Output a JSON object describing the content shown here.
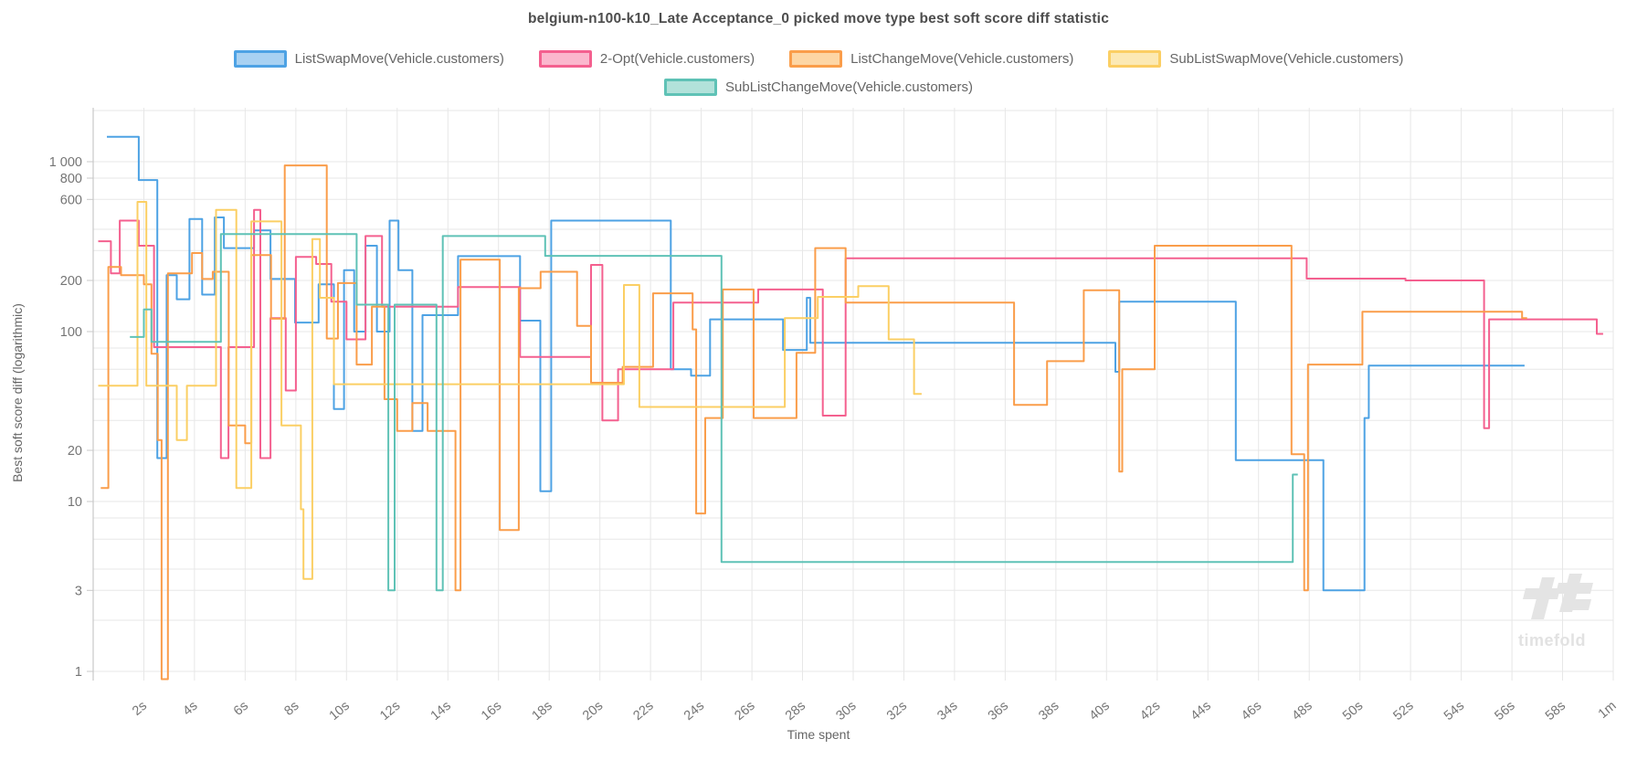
{
  "page": {
    "title": "belgium-n100-k10_Late Acceptance_0 picked move type best soft score diff statistic"
  },
  "legend": {
    "items": [
      {
        "label": "ListSwapMove(Vehicle.customers)",
        "line": "#4DA2E4",
        "fill": "#A8D1F2"
      },
      {
        "label": "2-Opt(Vehicle.customers)",
        "line": "#F4608F",
        "fill": "#FBB7CD"
      },
      {
        "label": "ListChangeMove(Vehicle.customers)",
        "line": "#FA9D4A",
        "fill": "#FDD6A4"
      },
      {
        "label": "SubListSwapMove(Vehicle.customers)",
        "line": "#FBCF64",
        "fill": "#FCE9B4"
      },
      {
        "label": "SubListChangeMove(Vehicle.customers)",
        "line": "#5FC2B6",
        "fill": "#B2E2DA"
      }
    ]
  },
  "axes": {
    "x": {
      "title": "Time spent",
      "ticks": [
        {
          "t": 2,
          "label": "2s"
        },
        {
          "t": 4,
          "label": "4s"
        },
        {
          "t": 6,
          "label": "6s"
        },
        {
          "t": 8,
          "label": "8s"
        },
        {
          "t": 10,
          "label": "10s"
        },
        {
          "t": 12,
          "label": "12s"
        },
        {
          "t": 14,
          "label": "14s"
        },
        {
          "t": 16,
          "label": "16s"
        },
        {
          "t": 18,
          "label": "18s"
        },
        {
          "t": 20,
          "label": "20s"
        },
        {
          "t": 22,
          "label": "22s"
        },
        {
          "t": 24,
          "label": "24s"
        },
        {
          "t": 26,
          "label": "26s"
        },
        {
          "t": 28,
          "label": "28s"
        },
        {
          "t": 30,
          "label": "30s"
        },
        {
          "t": 32,
          "label": "32s"
        },
        {
          "t": 34,
          "label": "34s"
        },
        {
          "t": 36,
          "label": "36s"
        },
        {
          "t": 38,
          "label": "38s"
        },
        {
          "t": 40,
          "label": "40s"
        },
        {
          "t": 42,
          "label": "42s"
        },
        {
          "t": 44,
          "label": "44s"
        },
        {
          "t": 46,
          "label": "46s"
        },
        {
          "t": 48,
          "label": "48s"
        },
        {
          "t": 50,
          "label": "50s"
        },
        {
          "t": 52,
          "label": "52s"
        },
        {
          "t": 54,
          "label": "54s"
        },
        {
          "t": 56,
          "label": "56s"
        },
        {
          "t": 58,
          "label": "58s"
        },
        {
          "t": 60,
          "label": "1m"
        }
      ],
      "gridline_step_s": 2,
      "max_s": 60
    },
    "y": {
      "title": "Best soft score diff (logarithmic)",
      "ticks": [
        {
          "label": "1 000",
          "value": 1000
        },
        {
          "label": "800",
          "value": 800
        },
        {
          "label": "600",
          "value": 600
        },
        {
          "label": "200",
          "value": 200
        },
        {
          "label": "100",
          "value": 100
        },
        {
          "label": "20",
          "value": 20
        },
        {
          "label": "10",
          "value": 10
        },
        {
          "label": "3",
          "value": 3
        },
        {
          "label": "1",
          "value": 1
        }
      ],
      "gridlines": [
        1,
        2,
        3,
        4,
        6,
        8,
        10,
        20,
        30,
        40,
        60,
        80,
        100,
        200,
        300,
        400,
        600,
        800,
        1000,
        2000
      ],
      "scale": "logarithmic"
    }
  },
  "chart_data": {
    "type": "line",
    "step_mode": "step-after",
    "title": "belgium-n100-k10_Late Acceptance_0 picked move type best soft score diff statistic",
    "xlabel": "Time spent",
    "ylabel": "Best soft score diff (logarithmic)",
    "x_unit": "seconds",
    "xlim": [
      0,
      60
    ],
    "ylog_range": [
      0.88,
      2100
    ],
    "grid": true,
    "legend_position": "top",
    "series": [
      {
        "name": "ListSwapMove(Vehicle.customers)",
        "color": "#4DA2E4",
        "points": [
          [
            0.54,
            1400
          ],
          [
            1.8,
            780
          ],
          [
            2.53,
            18
          ],
          [
            2.9,
            215
          ],
          [
            3.3,
            155
          ],
          [
            3.8,
            460
          ],
          [
            4.3,
            165
          ],
          [
            4.8,
            470
          ],
          [
            5.16,
            310
          ],
          [
            6.35,
            394
          ],
          [
            7.0,
            204
          ],
          [
            7.97,
            113
          ],
          [
            8.9,
            190
          ],
          [
            9.5,
            35
          ],
          [
            9.9,
            230
          ],
          [
            10.3,
            100
          ],
          [
            10.75,
            320
          ],
          [
            11.2,
            100
          ],
          [
            11.7,
            450
          ],
          [
            12.05,
            230
          ],
          [
            12.6,
            26
          ],
          [
            13.0,
            125
          ],
          [
            14.4,
            278
          ],
          [
            16.85,
            116
          ],
          [
            17.65,
            11.5
          ],
          [
            18.08,
            450
          ],
          [
            22.8,
            60
          ],
          [
            23.6,
            55
          ],
          [
            24.35,
            118
          ],
          [
            27.23,
            78
          ],
          [
            28.17,
            158
          ],
          [
            28.3,
            86
          ],
          [
            40.35,
            58
          ],
          [
            40.5,
            150
          ],
          [
            45.1,
            17.5
          ],
          [
            48.56,
            3
          ],
          [
            50.18,
            31
          ],
          [
            50.35,
            63
          ],
          [
            56.5,
            63
          ]
        ]
      },
      {
        "name": "2-Opt(Vehicle.customers)",
        "color": "#F4608F",
        "points": [
          [
            0.2,
            340
          ],
          [
            0.7,
            220
          ],
          [
            1.05,
            450
          ],
          [
            1.8,
            320
          ],
          [
            2.4,
            81
          ],
          [
            5.04,
            18
          ],
          [
            5.34,
            81
          ],
          [
            6.35,
            520
          ],
          [
            6.6,
            18
          ],
          [
            7.0,
            120
          ],
          [
            7.6,
            45
          ],
          [
            8.0,
            275
          ],
          [
            8.8,
            250
          ],
          [
            9.4,
            150
          ],
          [
            10.0,
            90
          ],
          [
            10.75,
            365
          ],
          [
            11.4,
            140
          ],
          [
            14.4,
            183
          ],
          [
            16.85,
            71
          ],
          [
            19.65,
            247
          ],
          [
            20.1,
            30
          ],
          [
            20.72,
            60
          ],
          [
            22.9,
            148
          ],
          [
            26.25,
            177
          ],
          [
            28.8,
            32
          ],
          [
            29.7,
            270
          ],
          [
            47.9,
            205
          ],
          [
            51.8,
            200
          ],
          [
            54.9,
            27
          ],
          [
            55.1,
            118
          ],
          [
            59.35,
            97
          ],
          [
            59.6,
            97
          ]
        ]
      },
      {
        "name": "ListChangeMove(Vehicle.customers)",
        "color": "#FA9D4A",
        "points": [
          [
            0.3,
            12
          ],
          [
            0.6,
            240
          ],
          [
            1.1,
            215
          ],
          [
            2.0,
            190
          ],
          [
            2.3,
            74
          ],
          [
            2.55,
            23
          ],
          [
            2.7,
            0.9
          ],
          [
            2.95,
            220
          ],
          [
            3.9,
            290
          ],
          [
            4.3,
            204
          ],
          [
            4.72,
            225
          ],
          [
            5.35,
            28
          ],
          [
            6.0,
            22
          ],
          [
            6.24,
            282
          ],
          [
            7.02,
            119
          ],
          [
            7.56,
            950
          ],
          [
            9.22,
            91
          ],
          [
            9.66,
            193
          ],
          [
            10.4,
            64
          ],
          [
            11.0,
            140
          ],
          [
            11.5,
            40
          ],
          [
            12.0,
            26
          ],
          [
            12.6,
            38
          ],
          [
            13.2,
            26
          ],
          [
            14.3,
            3
          ],
          [
            14.5,
            265
          ],
          [
            16.05,
            6.8
          ],
          [
            16.8,
            180
          ],
          [
            17.66,
            225
          ],
          [
            19.1,
            108
          ],
          [
            19.65,
            50
          ],
          [
            20.9,
            62
          ],
          [
            22.1,
            168
          ],
          [
            23.66,
            103
          ],
          [
            23.8,
            8.5
          ],
          [
            24.16,
            31
          ],
          [
            24.85,
            177
          ],
          [
            26.07,
            31
          ],
          [
            27.76,
            75
          ],
          [
            28.5,
            310
          ],
          [
            29.7,
            148
          ],
          [
            36.35,
            37
          ],
          [
            37.65,
            67
          ],
          [
            39.1,
            175
          ],
          [
            40.5,
            15
          ],
          [
            40.62,
            60
          ],
          [
            41.9,
            320
          ],
          [
            47.3,
            19
          ],
          [
            47.8,
            3
          ],
          [
            47.95,
            64
          ],
          [
            50.1,
            131
          ],
          [
            56.4,
            120
          ],
          [
            56.6,
            120
          ]
        ]
      },
      {
        "name": "SubListSwapMove(Vehicle.customers)",
        "color": "#FBCF64",
        "points": [
          [
            0.2,
            48
          ],
          [
            1.75,
            580
          ],
          [
            2.1,
            48
          ],
          [
            3.3,
            23
          ],
          [
            3.7,
            48
          ],
          [
            4.85,
            520
          ],
          [
            5.65,
            12
          ],
          [
            6.24,
            445
          ],
          [
            7.43,
            28
          ],
          [
            8.2,
            9
          ],
          [
            8.3,
            3.5
          ],
          [
            8.65,
            350
          ],
          [
            8.95,
            158
          ],
          [
            9.5,
            49
          ],
          [
            20.95,
            188
          ],
          [
            21.56,
            36
          ],
          [
            27.3,
            120
          ],
          [
            28.6,
            160
          ],
          [
            30.2,
            185
          ],
          [
            31.4,
            90
          ],
          [
            32.4,
            43
          ],
          [
            32.7,
            43
          ]
        ]
      },
      {
        "name": "SubListChangeMove(Vehicle.customers)",
        "color": "#5FC2B6",
        "points": [
          [
            1.45,
            93
          ],
          [
            2.0,
            135
          ],
          [
            2.3,
            87
          ],
          [
            5.04,
            375
          ],
          [
            10.4,
            144
          ],
          [
            11.65,
            3
          ],
          [
            11.9,
            144
          ],
          [
            13.55,
            3
          ],
          [
            13.8,
            365
          ],
          [
            17.84,
            279
          ],
          [
            24.8,
            4.4
          ],
          [
            47.35,
            14.4
          ],
          [
            47.55,
            14.4
          ]
        ]
      }
    ]
  },
  "watermark": {
    "text": "timefold"
  },
  "style": {
    "grid_color": "#e7e7e7",
    "axis_line_color": "#c8c8c8",
    "tick_text_color": "#757575",
    "watermark_color": "#e2e2e2"
  }
}
